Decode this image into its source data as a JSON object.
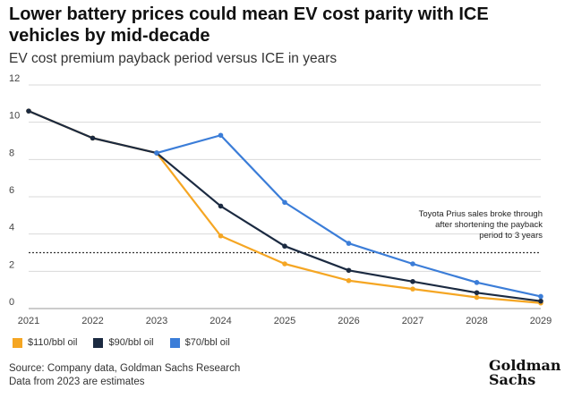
{
  "title": "Lower battery prices could mean EV cost parity with ICE vehicles by mid-decade",
  "subtitle": "EV cost premium payback period versus ICE in years",
  "annotation": "Toyota Prius sales broke through after shortening the payback period to 3 years",
  "source_line1": "Source: Company data, Goldman Sachs Research",
  "source_line2": "Data from 2023 are estimates",
  "logo_line1": "Goldman",
  "logo_line2": "Sachs",
  "colors": {
    "orange": "#F5A623",
    "navy": "#1B2A41",
    "blue": "#3B7DD8",
    "grid": "#d9d9d9"
  },
  "chart_data": {
    "type": "line",
    "x": [
      "2021",
      "2022",
      "2023",
      "2024",
      "2025",
      "2026",
      "2027",
      "2028",
      "2029"
    ],
    "ylim": [
      0,
      12
    ],
    "yticks": [
      "0",
      "2",
      "4",
      "6",
      "8",
      "10",
      "12"
    ],
    "reference_line": 3,
    "grid": true,
    "legend_position": "bottom-left",
    "series": [
      {
        "name": "$110/bbl oil",
        "color": "#F5A623",
        "values": [
          10.6,
          9.15,
          8.35,
          3.9,
          2.4,
          1.5,
          1.05,
          0.6,
          0.3
        ]
      },
      {
        "name": "$90/bbl oil",
        "color": "#1B2A41",
        "values": [
          10.6,
          9.15,
          8.35,
          5.5,
          3.35,
          2.05,
          1.45,
          0.85,
          0.4
        ]
      },
      {
        "name": "$70/bbl oil",
        "color": "#3B7DD8",
        "values": [
          null,
          null,
          8.35,
          9.3,
          5.7,
          3.5,
          2.4,
          1.4,
          0.65
        ]
      }
    ]
  }
}
